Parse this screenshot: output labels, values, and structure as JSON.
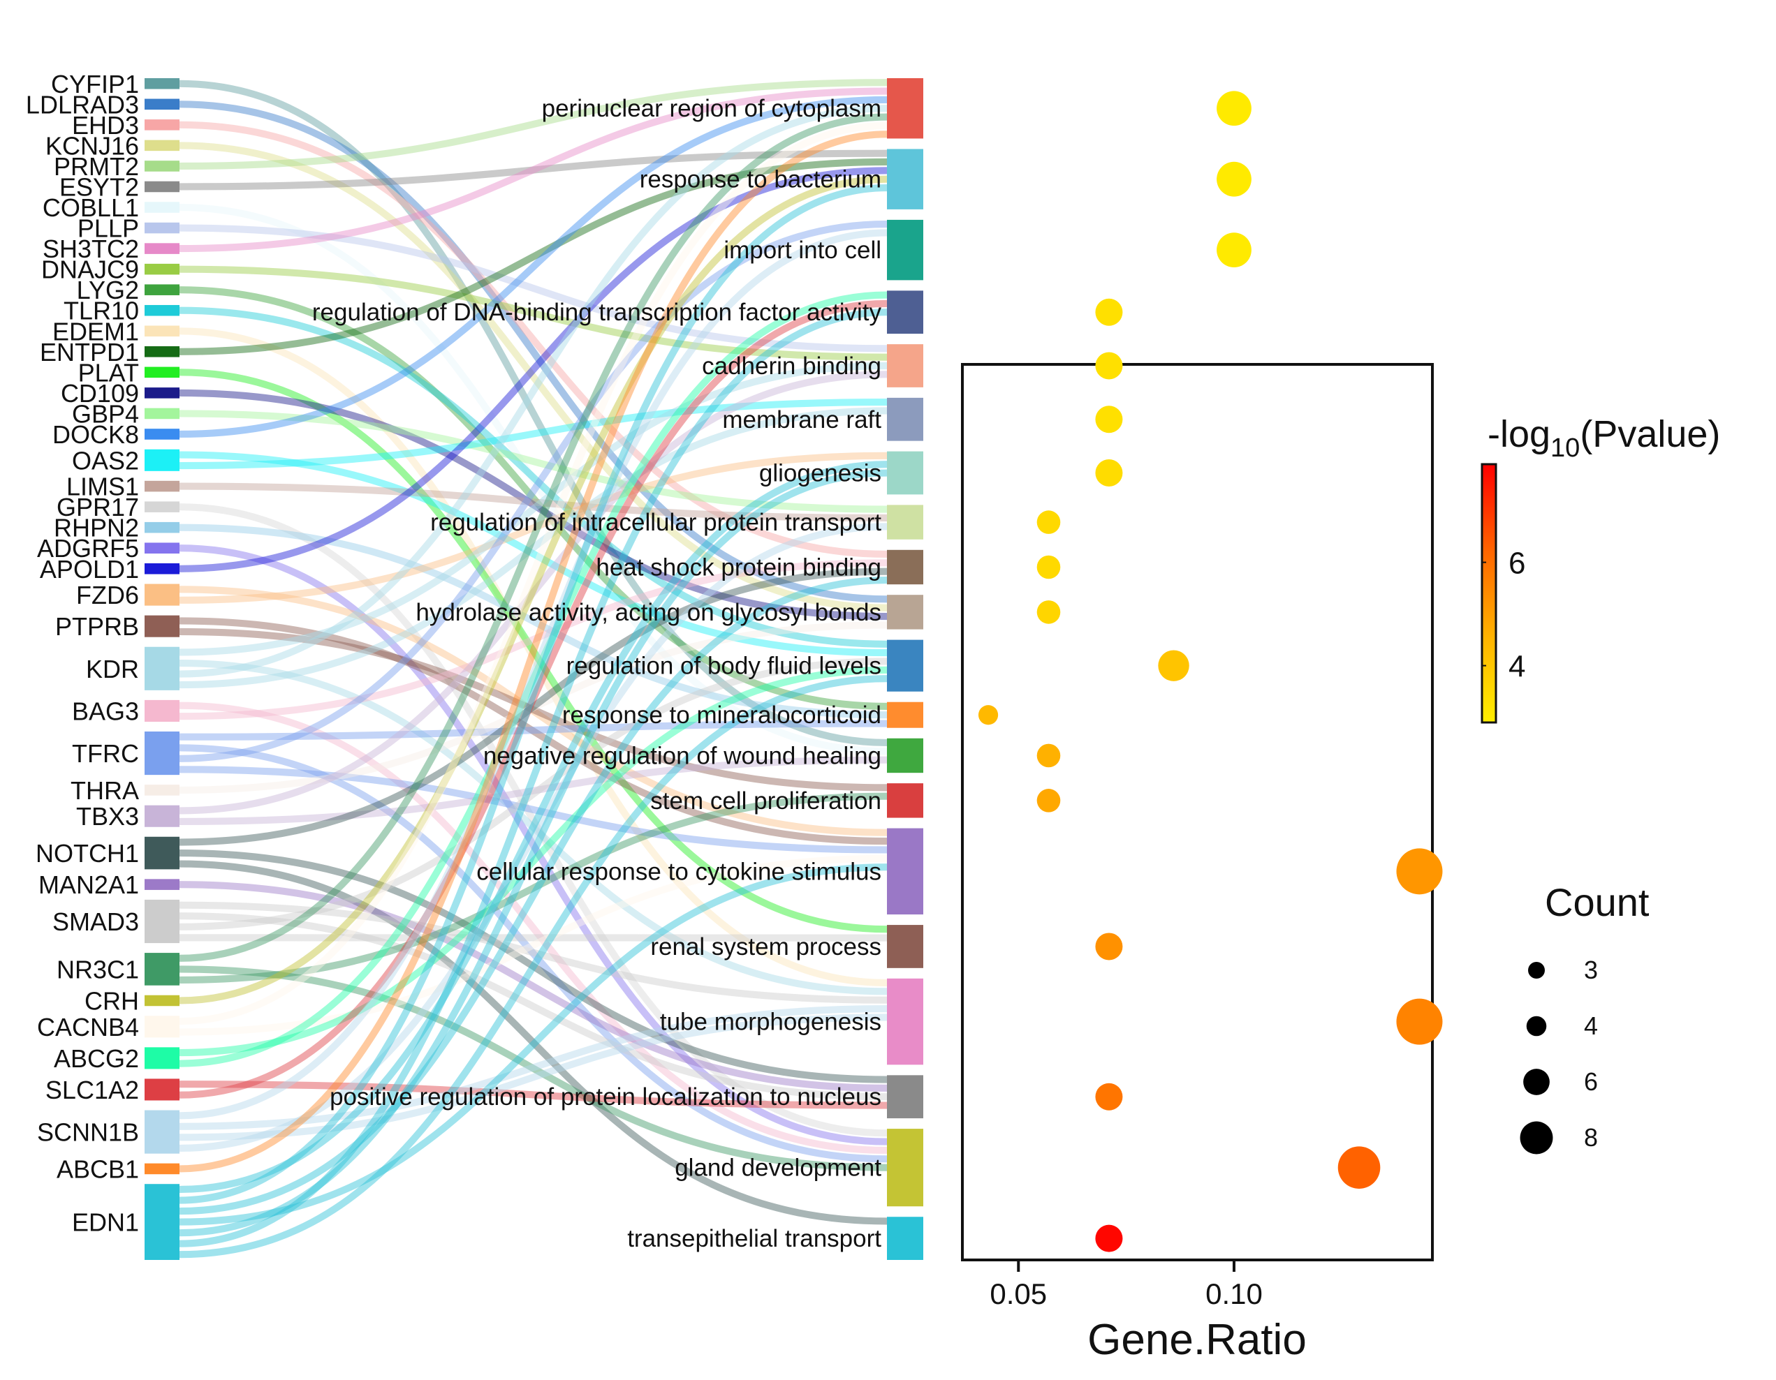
{
  "chart_data": [
    {
      "type": "sankey",
      "genes": [
        {
          "name": "CYFIP1",
          "color": "#5f9ea0",
          "weight": 1
        },
        {
          "name": "LDLRAD3",
          "color": "#3a7dc9",
          "weight": 1
        },
        {
          "name": "EHD3",
          "color": "#f7a6a6",
          "weight": 1
        },
        {
          "name": "KCNJ16",
          "color": "#dede8c",
          "weight": 1
        },
        {
          "name": "PRMT2",
          "color": "#a6dc8a",
          "weight": 1
        },
        {
          "name": "ESYT2",
          "color": "#8a8a8a",
          "weight": 1
        },
        {
          "name": "COBLL1",
          "color": "#e6f7fb",
          "weight": 1
        },
        {
          "name": "PLLP",
          "color": "#b8c6ec",
          "weight": 1
        },
        {
          "name": "SH3TC2",
          "color": "#e689c8",
          "weight": 1
        },
        {
          "name": "DNAJC9",
          "color": "#99cc44",
          "weight": 1
        },
        {
          "name": "LYG2",
          "color": "#3ea33e",
          "weight": 1
        },
        {
          "name": "TLR10",
          "color": "#1ecbd8",
          "weight": 1
        },
        {
          "name": "EDEM1",
          "color": "#fbe4b8",
          "weight": 1
        },
        {
          "name": "ENTPD1",
          "color": "#156b15",
          "weight": 1
        },
        {
          "name": "PLAT",
          "color": "#22ee22",
          "weight": 1
        },
        {
          "name": "CD109",
          "color": "#1b1b8a",
          "weight": 1
        },
        {
          "name": "GBP4",
          "color": "#a3f59c",
          "weight": 1
        },
        {
          "name": "DOCK8",
          "color": "#3a8cf0",
          "weight": 1
        },
        {
          "name": "OAS2",
          "color": "#1cf0f6",
          "weight": 2
        },
        {
          "name": "LIMS1",
          "color": "#c4a59b",
          "weight": 1
        },
        {
          "name": "GPR17",
          "color": "#d6d6d6",
          "weight": 1
        },
        {
          "name": "RHPN2",
          "color": "#94cde8",
          "weight": 1
        },
        {
          "name": "ADGRF5",
          "color": "#8474ee",
          "weight": 1
        },
        {
          "name": "APOLD1",
          "color": "#1b1bd8",
          "weight": 1
        },
        {
          "name": "FZD6",
          "color": "#fbbf84",
          "weight": 2
        },
        {
          "name": "PTPRB",
          "color": "#8f5f55",
          "weight": 2
        },
        {
          "name": "KDR",
          "color": "#a6d9e6",
          "weight": 4
        },
        {
          "name": "BAG3",
          "color": "#f5b8cf",
          "weight": 2
        },
        {
          "name": "TFRC",
          "color": "#7aa0ee",
          "weight": 4
        },
        {
          "name": "THRA",
          "color": "#f6ede6",
          "weight": 1
        },
        {
          "name": "TBX3",
          "color": "#c8b4d8",
          "weight": 2
        },
        {
          "name": "NOTCH1",
          "color": "#3f5a5a",
          "weight": 3
        },
        {
          "name": "MAN2A1",
          "color": "#9c7ac8",
          "weight": 1
        },
        {
          "name": "SMAD3",
          "color": "#cccccc",
          "weight": 4
        },
        {
          "name": "NR3C1",
          "color": "#3f9a66",
          "weight": 3
        },
        {
          "name": "CRH",
          "color": "#c2c234",
          "weight": 1
        },
        {
          "name": "CACNB4",
          "color": "#fff7ec",
          "weight": 2
        },
        {
          "name": "ABCG2",
          "color": "#1efca6",
          "weight": 2
        },
        {
          "name": "SLC1A2",
          "color": "#dd3f44",
          "weight": 2
        },
        {
          "name": "SCNN1B",
          "color": "#b3d8ec",
          "weight": 4
        },
        {
          "name": "ABCB1",
          "color": "#ff8a2a",
          "weight": 1
        },
        {
          "name": "EDN1",
          "color": "#2ac2d6",
          "weight": 7
        }
      ],
      "terms": [
        {
          "name": "perinuclear region of cytoplasm",
          "color": "#e5574b",
          "weight": 7
        },
        {
          "name": "response to bacterium",
          "color": "#5ec5da",
          "weight": 7
        },
        {
          "name": "import into cell",
          "color": "#1aa48c",
          "weight": 7
        },
        {
          "name": "regulation of DNA-binding transcription factor activity",
          "color": "#4e5f93",
          "weight": 5
        },
        {
          "name": "cadherin binding",
          "color": "#f5a58a",
          "weight": 5
        },
        {
          "name": "membrane raft",
          "color": "#8c9bbd",
          "weight": 5
        },
        {
          "name": "gliogenesis",
          "color": "#9cd7c8",
          "weight": 5
        },
        {
          "name": "regulation of intracellular protein transport",
          "color": "#cfe1a3",
          "weight": 4
        },
        {
          "name": "heat shock protein binding",
          "color": "#8a6e58",
          "weight": 4
        },
        {
          "name": "hydrolase activity, acting on glycosyl bonds",
          "color": "#b8a594",
          "weight": 4
        },
        {
          "name": "regulation of body fluid levels",
          "color": "#3a85c0",
          "weight": 6
        },
        {
          "name": "response to mineralocorticoid",
          "color": "#ff8c2e",
          "weight": 3
        },
        {
          "name": "negative regulation of wound healing",
          "color": "#3fa83f",
          "weight": 4
        },
        {
          "name": "stem cell proliferation",
          "color": "#d93f3f",
          "weight": 4
        },
        {
          "name": "cellular response to cytokine stimulus",
          "color": "#9a78c6",
          "weight": 10
        },
        {
          "name": "renal system process",
          "color": "#8e5f55",
          "weight": 5
        },
        {
          "name": "tube morphogenesis",
          "color": "#e88cc8",
          "weight": 10
        },
        {
          "name": "positive regulation of protein localization to nucleus",
          "color": "#8a8a8a",
          "weight": 5
        },
        {
          "name": "gland development",
          "color": "#c4c434",
          "weight": 9
        },
        {
          "name": "transepithelial transport",
          "color": "#2ac2d6",
          "weight": 5
        }
      ]
    },
    {
      "type": "scatter",
      "xlabel": "Gene.Ratio",
      "xticks": [
        0.05,
        0.1
      ],
      "xtick_labels": [
        "0.05",
        "0.10"
      ],
      "xlim": [
        0.037,
        0.146
      ],
      "points": [
        {
          "term": "perinuclear region of cytoplasm",
          "gene_ratio": 0.1,
          "count": 7,
          "neglog10p": 3.0
        },
        {
          "term": "response to bacterium",
          "gene_ratio": 0.1,
          "count": 7,
          "neglog10p": 3.0
        },
        {
          "term": "import into cell",
          "gene_ratio": 0.1,
          "count": 7,
          "neglog10p": 3.0
        },
        {
          "term": "regulation of DNA-binding transcription factor activity",
          "gene_ratio": 0.071,
          "count": 5,
          "neglog10p": 3.3
        },
        {
          "term": "cadherin binding",
          "gene_ratio": 0.071,
          "count": 5,
          "neglog10p": 3.3
        },
        {
          "term": "membrane raft",
          "gene_ratio": 0.071,
          "count": 5,
          "neglog10p": 3.3
        },
        {
          "term": "gliogenesis",
          "gene_ratio": 0.071,
          "count": 5,
          "neglog10p": 3.4
        },
        {
          "term": "regulation of intracellular protein transport",
          "gene_ratio": 0.057,
          "count": 4,
          "neglog10p": 3.5
        },
        {
          "term": "heat shock protein binding",
          "gene_ratio": 0.057,
          "count": 4,
          "neglog10p": 3.5
        },
        {
          "term": "hydrolase activity, acting on glycosyl bonds",
          "gene_ratio": 0.057,
          "count": 4,
          "neglog10p": 3.6
        },
        {
          "term": "regulation of body fluid levels",
          "gene_ratio": 0.086,
          "count": 6,
          "neglog10p": 4.1
        },
        {
          "term": "response to mineralocorticoid",
          "gene_ratio": 0.043,
          "count": 3,
          "neglog10p": 4.4
        },
        {
          "term": "negative regulation of wound healing",
          "gene_ratio": 0.057,
          "count": 4,
          "neglog10p": 4.6
        },
        {
          "term": "stem cell proliferation",
          "gene_ratio": 0.057,
          "count": 4,
          "neglog10p": 4.8
        },
        {
          "term": "cellular response to cytokine stimulus",
          "gene_ratio": 0.143,
          "count": 10,
          "neglog10p": 5.2
        },
        {
          "term": "renal system process",
          "gene_ratio": 0.071,
          "count": 5,
          "neglog10p": 5.3
        },
        {
          "term": "tube morphogenesis",
          "gene_ratio": 0.143,
          "count": 10,
          "neglog10p": 5.6
        },
        {
          "term": "positive regulation of protein localization to nucleus",
          "gene_ratio": 0.071,
          "count": 5,
          "neglog10p": 5.9
        },
        {
          "term": "gland development",
          "gene_ratio": 0.129,
          "count": 9,
          "neglog10p": 6.3
        },
        {
          "term": "transepithelial transport",
          "gene_ratio": 0.071,
          "count": 5,
          "neglog10p": 7.8
        }
      ],
      "colorbar": {
        "title_base": "-log",
        "title_sub": "10",
        "title_rest": "(Pvalue)",
        "range": [
          2.9,
          7.9
        ],
        "ticks": [
          4,
          6
        ],
        "tick_labels": [
          "4",
          "6"
        ],
        "colors": [
          "#ffee00",
          "#ffb300",
          "#ff6600",
          "#ff0000"
        ]
      },
      "size_legend": {
        "title": "Count",
        "entries": [
          {
            "label": "3",
            "count": 3
          },
          {
            "label": "4",
            "count": 4
          },
          {
            "label": "6",
            "count": 6
          },
          {
            "label": "8",
            "count": 8
          }
        ]
      }
    }
  ]
}
